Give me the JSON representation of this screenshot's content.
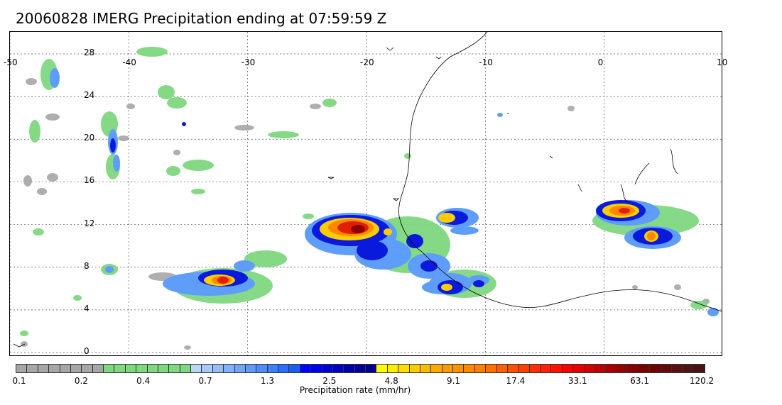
{
  "title": "20060828 IMERG Precipitation ending at 07:59:59 Z",
  "map": {
    "lon_range": [
      -50,
      10
    ],
    "lat_range": [
      -0.5,
      28
    ],
    "lon_ticks": [
      "-50",
      "-40",
      "-30",
      "-20",
      "-10",
      "0",
      "10"
    ],
    "lat_ticks": [
      "0",
      "4",
      "8",
      "12",
      "16",
      "20",
      "24",
      "28"
    ],
    "gridlines": true
  },
  "colorbar": {
    "title": "Precipitation rate (mm/hr)",
    "labels": [
      "0.1",
      "0.2",
      "0.4",
      "0.7",
      "1.3",
      "2.5",
      "4.8",
      "9.1",
      "17.4",
      "33.1",
      "63.1",
      "120.2"
    ],
    "colors": [
      "#a6a6a6",
      "#a6a6a6",
      "#a6a6a6",
      "#a6a6a6",
      "#a6a6a6",
      "#a6a6a6",
      "#a6a6a6",
      "#a6a6a6",
      "#7fd77f",
      "#7fd77f",
      "#7fd77f",
      "#7fd77f",
      "#7fd77f",
      "#7fd77f",
      "#7fd77f",
      "#7fd77f",
      "#bcd4f5",
      "#a9c8f7",
      "#97bcf8",
      "#85b0fa",
      "#73a4fb",
      "#6198fb",
      "#4f8cfc",
      "#3d80fd",
      "#2b6ff7",
      "#1a5ef0",
      "#0000ff",
      "#0000ea",
      "#0000d4",
      "#0000c0",
      "#0000a8",
      "#000096",
      "#00008a",
      "#ffff00",
      "#ffee00",
      "#ffdd00",
      "#ffcc00",
      "#ffbb00",
      "#ffaa00",
      "#ff9900",
      "#ff9000",
      "#ff8800",
      "#ff7f00",
      "#ff7000",
      "#ff6000",
      "#ff5000",
      "#ff4000",
      "#ff3000",
      "#ff2000",
      "#ff1000",
      "#ff0000",
      "#e80000",
      "#d40000",
      "#c00000",
      "#ac0000",
      "#980000",
      "#880000",
      "#7a0000",
      "#6e0000",
      "#640a0a",
      "#5a1010",
      "#501414",
      "#461414"
    ]
  }
}
